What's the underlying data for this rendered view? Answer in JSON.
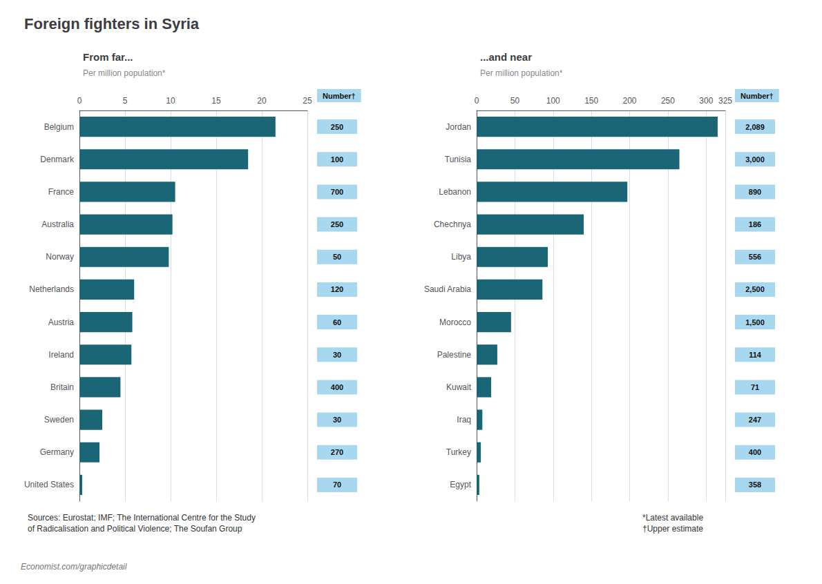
{
  "title": "Foreign fighters in Syria",
  "annotations": [
    "Sources: Eurostat; IMF; The International Centre for the Study\nof Radicalisation and Political Violence; The Soufan Group",
    "*Latest available\n†Upper estimate",
    "Economist.com/graphicdetail"
  ],
  "chart_data": [
    {
      "type": "bar",
      "orientation": "horizontal",
      "subtitle": "From far...",
      "xlabel": "Per million population*",
      "categories": [
        "Belgium",
        "Denmark",
        "France",
        "Australia",
        "Norway",
        "Netherlands",
        "Austria",
        "Ireland",
        "Britain",
        "Sweden",
        "Germany",
        "United States"
      ],
      "values": [
        21.5,
        18.5,
        10.5,
        10.2,
        9.8,
        6.0,
        5.8,
        5.7,
        4.5,
        2.5,
        2.2,
        0.3
      ],
      "number_title": "Number†",
      "numbers": [
        "250",
        "100",
        "700",
        "250",
        "50",
        "120",
        "60",
        "30",
        "400",
        "30",
        "270",
        "70"
      ],
      "color": "#1a6677",
      "xlim": [
        0,
        25
      ],
      "xticks": [
        0,
        5,
        10,
        15,
        20,
        25
      ],
      "grid": true
    },
    {
      "type": "bar",
      "orientation": "horizontal",
      "subtitle": "...and near",
      "xlabel": "Per million population*",
      "categories": [
        "Jordan",
        "Tunisia",
        "Lebanon",
        "Chechnya",
        "Libya",
        "Saudi Arabia",
        "Morocco",
        "Palestine",
        "Kuwait",
        "Iraq",
        "Turkey",
        "Egypt"
      ],
      "values": [
        315.0,
        265.0,
        197.0,
        140.0,
        93.0,
        86.0,
        45.0,
        27.0,
        19.0,
        7.5,
        5.5,
        3.5
      ],
      "number_title": "Number†",
      "numbers": [
        "2,089",
        "3,000",
        "890",
        "186",
        "556",
        "2,500",
        "1,500",
        "114",
        "71",
        "247",
        "400",
        "358"
      ],
      "color": "#1a6677",
      "xlim": [
        0,
        325
      ],
      "xticks": [
        0,
        50,
        100,
        150,
        200,
        250,
        300
      ],
      "grid": true
    }
  ]
}
